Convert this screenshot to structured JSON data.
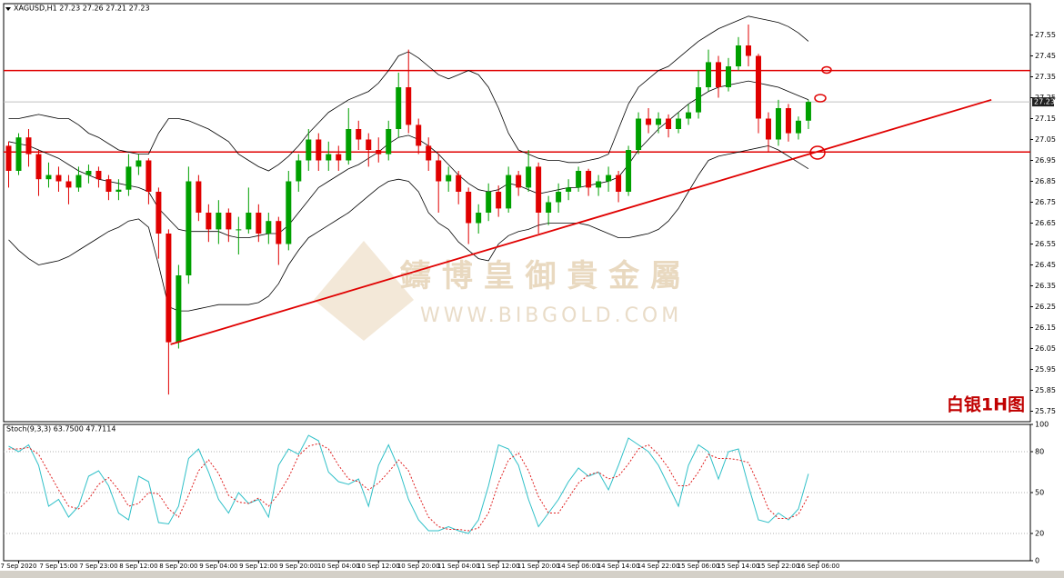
{
  "chart_data": {
    "type": "candlestick",
    "header": "XAGUSD,H1  27.23 27.26 27.21 27.23",
    "annotation": "白银1H图",
    "watermark": {
      "title": "鑄 博 皇 御 貴 金 屬",
      "url": "WWW.BIBGOLD.COM"
    },
    "bull_color": "#00a000",
    "bear_color": "#e00000",
    "xlim": [
      -0.5,
      102.2
    ],
    "xticks": [
      {
        "value": 1,
        "label": "7 Sep 2020"
      },
      {
        "value": 5,
        "label": "7 Sep 15:00"
      },
      {
        "value": 9,
        "label": "7 Sep 23:00"
      },
      {
        "value": 13,
        "label": "8 Sep 12:00"
      },
      {
        "value": 17,
        "label": "8 Sep 20:00"
      },
      {
        "value": 21,
        "label": "9 Sep 04:00"
      },
      {
        "value": 25,
        "label": "9 Sep 12:00"
      },
      {
        "value": 29,
        "label": "9 Sep 20:00"
      },
      {
        "value": 33,
        "label": "10 Sep 04:00"
      },
      {
        "value": 37,
        "label": "10 Sep 12:00"
      },
      {
        "value": 41,
        "label": "10 Sep 20:00"
      },
      {
        "value": 45,
        "label": "11 Sep 04:00"
      },
      {
        "value": 49,
        "label": "11 Sep 12:00"
      },
      {
        "value": 53,
        "label": "11 Sep 20:00"
      },
      {
        "value": 57,
        "label": "14 Sep 06:00"
      },
      {
        "value": 61,
        "label": "14 Sep 14:00"
      },
      {
        "value": 65,
        "label": "14 Sep 22:00"
      },
      {
        "value": 69,
        "label": "15 Sep 06:00"
      },
      {
        "value": 73,
        "label": "15 Sep 14:00"
      },
      {
        "value": 77,
        "label": "15 Sep 22:00"
      },
      {
        "value": 81,
        "label": "16 Sep 06:00"
      }
    ],
    "ylim": [
      25.7,
      27.7
    ],
    "yticks": [
      25.75,
      25.85,
      25.95,
      26.05,
      26.15,
      26.25,
      26.35,
      26.45,
      26.55,
      26.65,
      26.75,
      26.85,
      26.95,
      27.05,
      27.15,
      27.25,
      27.35,
      27.45,
      27.55
    ],
    "last_price": 27.23,
    "hlines": [
      27.38,
      26.99
    ],
    "hline_color": "#e00000",
    "trendline": {
      "x": [
        16.2,
        98.3
      ],
      "y": [
        26.07,
        27.24
      ],
      "color": "#e00000"
    },
    "candles": [
      [
        27.02,
        27.04,
        26.82,
        26.9
      ],
      [
        26.9,
        27.08,
        26.88,
        27.06
      ],
      [
        27.06,
        27.1,
        26.92,
        26.98
      ],
      [
        26.98,
        27.0,
        26.78,
        26.86
      ],
      [
        26.86,
        26.94,
        26.82,
        26.88
      ],
      [
        26.88,
        26.92,
        26.8,
        26.85
      ],
      [
        26.85,
        26.88,
        26.74,
        26.82
      ],
      [
        26.82,
        26.92,
        26.8,
        26.88
      ],
      [
        26.88,
        26.93,
        26.84,
        26.9
      ],
      [
        26.9,
        26.92,
        26.82,
        26.86
      ],
      [
        26.86,
        26.88,
        26.76,
        26.8
      ],
      [
        26.8,
        26.86,
        26.76,
        26.81
      ],
      [
        26.81,
        26.98,
        26.78,
        26.92
      ],
      [
        26.92,
        26.98,
        26.88,
        26.95
      ],
      [
        26.95,
        26.96,
        26.74,
        26.8
      ],
      [
        26.8,
        26.82,
        26.48,
        26.6
      ],
      [
        26.6,
        26.62,
        25.83,
        26.08
      ],
      [
        26.08,
        26.45,
        26.05,
        26.4
      ],
      [
        26.4,
        26.92,
        26.36,
        26.85
      ],
      [
        26.85,
        26.88,
        26.66,
        26.7
      ],
      [
        26.7,
        26.74,
        26.56,
        26.62
      ],
      [
        26.62,
        26.76,
        26.55,
        26.7
      ],
      [
        26.7,
        26.72,
        26.56,
        26.62
      ],
      [
        26.62,
        26.68,
        26.5,
        26.62
      ],
      [
        26.62,
        26.82,
        26.6,
        26.7
      ],
      [
        26.7,
        26.74,
        26.56,
        26.6
      ],
      [
        26.6,
        26.7,
        26.55,
        26.66
      ],
      [
        26.66,
        26.68,
        26.45,
        26.55
      ],
      [
        26.55,
        26.9,
        26.52,
        26.85
      ],
      [
        26.85,
        26.98,
        26.8,
        26.95
      ],
      [
        26.95,
        27.1,
        26.9,
        27.05
      ],
      [
        27.05,
        27.08,
        26.9,
        26.95
      ],
      [
        26.95,
        27.04,
        26.9,
        26.98
      ],
      [
        26.98,
        27.02,
        26.9,
        26.95
      ],
      [
        26.95,
        27.2,
        26.93,
        27.1
      ],
      [
        27.1,
        27.14,
        27.0,
        27.05
      ],
      [
        27.05,
        27.08,
        26.92,
        27.0
      ],
      [
        27.0,
        27.06,
        26.94,
        26.98
      ],
      [
        26.98,
        27.14,
        26.95,
        27.1
      ],
      [
        27.1,
        27.37,
        27.06,
        27.3
      ],
      [
        27.3,
        27.48,
        27.08,
        27.12
      ],
      [
        27.12,
        27.15,
        26.98,
        27.02
      ],
      [
        27.02,
        27.06,
        26.9,
        26.95
      ],
      [
        26.95,
        26.98,
        26.7,
        26.85
      ],
      [
        26.85,
        26.92,
        26.8,
        26.88
      ],
      [
        26.88,
        26.9,
        26.74,
        26.8
      ],
      [
        26.8,
        26.82,
        26.55,
        26.65
      ],
      [
        26.65,
        26.74,
        26.6,
        26.7
      ],
      [
        26.7,
        26.84,
        26.66,
        26.8
      ],
      [
        26.8,
        26.83,
        26.68,
        26.72
      ],
      [
        26.72,
        26.92,
        26.7,
        26.88
      ],
      [
        26.88,
        26.9,
        26.78,
        26.82
      ],
      [
        26.82,
        27.0,
        26.8,
        26.92
      ],
      [
        26.92,
        26.94,
        26.6,
        26.7
      ],
      [
        26.7,
        26.78,
        26.64,
        26.75
      ],
      [
        26.75,
        26.84,
        26.7,
        26.8
      ],
      [
        26.8,
        26.86,
        26.76,
        26.82
      ],
      [
        26.82,
        26.92,
        26.8,
        26.9
      ],
      [
        26.9,
        26.91,
        26.78,
        26.82
      ],
      [
        26.82,
        26.88,
        26.78,
        26.85
      ],
      [
        26.85,
        26.92,
        26.8,
        26.88
      ],
      [
        26.88,
        26.9,
        26.75,
        26.8
      ],
      [
        26.8,
        27.02,
        26.78,
        27.0
      ],
      [
        27.0,
        27.18,
        26.98,
        27.15
      ],
      [
        27.15,
        27.2,
        27.08,
        27.12
      ],
      [
        27.12,
        27.18,
        27.08,
        27.15
      ],
      [
        27.15,
        27.17,
        27.06,
        27.1
      ],
      [
        27.1,
        27.18,
        27.08,
        27.15
      ],
      [
        27.15,
        27.22,
        27.12,
        27.18
      ],
      [
        27.18,
        27.38,
        27.15,
        27.3
      ],
      [
        27.3,
        27.48,
        27.28,
        27.42
      ],
      [
        27.42,
        27.45,
        27.25,
        27.3
      ],
      [
        27.3,
        27.44,
        27.28,
        27.4
      ],
      [
        27.4,
        27.54,
        27.38,
        27.5
      ],
      [
        27.5,
        27.6,
        27.4,
        27.45
      ],
      [
        27.45,
        27.46,
        27.08,
        27.15
      ],
      [
        27.15,
        27.18,
        26.99,
        27.05
      ],
      [
        27.05,
        27.24,
        27.02,
        27.2
      ],
      [
        27.2,
        27.22,
        27.04,
        27.08
      ],
      [
        27.08,
        27.16,
        27.05,
        27.14
      ],
      [
        27.14,
        27.24,
        27.1,
        27.23
      ]
    ],
    "bollinger": {
      "color": "#000000",
      "upper": [
        27.15,
        27.15,
        27.16,
        27.17,
        27.16,
        27.15,
        27.15,
        27.12,
        27.08,
        27.06,
        27.03,
        27.0,
        26.99,
        26.98,
        26.98,
        27.08,
        27.15,
        27.15,
        27.14,
        27.12,
        27.1,
        27.07,
        27.04,
        26.98,
        26.95,
        26.92,
        26.9,
        26.93,
        26.97,
        27.02,
        27.08,
        27.13,
        27.18,
        27.21,
        27.24,
        27.26,
        27.28,
        27.32,
        27.38,
        27.45,
        27.47,
        27.44,
        27.4,
        27.36,
        27.34,
        27.36,
        27.38,
        27.36,
        27.3,
        27.2,
        27.08,
        27.0,
        26.98,
        26.96,
        26.95,
        26.95,
        26.94,
        26.94,
        26.95,
        26.96,
        26.98,
        27.1,
        27.22,
        27.3,
        27.34,
        27.38,
        27.4,
        27.44,
        27.48,
        27.52,
        27.55,
        27.58,
        27.6,
        27.62,
        27.64,
        27.63,
        27.62,
        27.61,
        27.59,
        27.56,
        27.52
      ],
      "middle": [
        27.04,
        27.03,
        27.02,
        27.0,
        26.98,
        26.96,
        26.93,
        26.9,
        26.88,
        26.86,
        26.85,
        26.84,
        26.83,
        26.82,
        26.8,
        26.72,
        26.67,
        26.62,
        26.61,
        26.61,
        26.61,
        26.61,
        26.59,
        26.58,
        26.58,
        26.59,
        26.6,
        26.6,
        26.64,
        26.7,
        26.76,
        26.82,
        26.85,
        26.88,
        26.91,
        26.93,
        26.96,
        26.99,
        27.03,
        27.06,
        27.07,
        27.05,
        27.02,
        26.98,
        26.93,
        26.88,
        26.84,
        26.81,
        26.8,
        26.81,
        26.84,
        26.83,
        26.81,
        26.79,
        26.8,
        26.81,
        26.82,
        26.82,
        26.83,
        26.84,
        26.85,
        26.87,
        26.93,
        27.0,
        27.05,
        27.1,
        27.14,
        27.18,
        27.22,
        27.25,
        27.28,
        27.3,
        27.31,
        27.32,
        27.33,
        27.32,
        27.31,
        27.3,
        27.28,
        27.26,
        27.24
      ],
      "lower": [
        26.57,
        26.52,
        26.48,
        26.45,
        26.46,
        26.47,
        26.49,
        26.52,
        26.55,
        26.58,
        26.61,
        26.63,
        26.66,
        26.67,
        26.63,
        26.45,
        26.25,
        26.23,
        26.23,
        26.24,
        26.25,
        26.26,
        26.26,
        26.26,
        26.26,
        26.27,
        26.3,
        26.36,
        26.45,
        26.52,
        26.58,
        26.61,
        26.64,
        26.67,
        26.7,
        26.74,
        26.78,
        26.82,
        26.85,
        26.86,
        26.85,
        26.8,
        26.7,
        26.65,
        26.62,
        26.56,
        26.52,
        26.48,
        26.47,
        26.55,
        26.59,
        26.61,
        26.62,
        26.64,
        26.65,
        26.65,
        26.65,
        26.65,
        26.64,
        26.62,
        26.6,
        26.58,
        26.58,
        26.59,
        26.6,
        26.62,
        26.66,
        26.72,
        26.8,
        26.88,
        26.95,
        26.97,
        26.98,
        26.99,
        27.0,
        27.01,
        27.02,
        27.0,
        26.97,
        26.94,
        26.91
      ]
    },
    "stochastic": {
      "header": "Stoch(9,3,3) 63.7500 47.7114",
      "k_color": "#30c0c8",
      "d_color": "#e02020",
      "ylim": [
        0,
        100
      ],
      "yticks": [
        0,
        20,
        50,
        80,
        100
      ],
      "k": [
        84,
        80,
        85,
        70,
        40,
        45,
        32,
        40,
        62,
        66,
        55,
        35,
        30,
        62,
        58,
        28,
        27,
        40,
        75,
        82,
        65,
        45,
        35,
        50,
        42,
        45,
        32,
        70,
        82,
        78,
        92,
        88,
        65,
        58,
        56,
        60,
        40,
        70,
        85,
        68,
        45,
        30,
        22,
        22,
        25,
        22,
        20,
        30,
        55,
        85,
        82,
        70,
        45,
        25,
        35,
        45,
        58,
        68,
        62,
        65,
        52,
        70,
        90,
        85,
        80,
        70,
        55,
        40,
        70,
        85,
        80,
        60,
        80,
        82,
        55,
        30,
        28,
        35,
        30,
        38,
        63.75
      ],
      "d": [
        82,
        82,
        83,
        78,
        65,
        52,
        40,
        38,
        45,
        56,
        61,
        52,
        40,
        42,
        50,
        49,
        38,
        32,
        48,
        66,
        74,
        64,
        48,
        43,
        42,
        46,
        40,
        49,
        61,
        77,
        84,
        86,
        82,
        70,
        60,
        58,
        52,
        57,
        65,
        74,
        66,
        48,
        32,
        25,
        23,
        23,
        22,
        24,
        35,
        57,
        74,
        79,
        66,
        47,
        35,
        35,
        46,
        57,
        63,
        65,
        60,
        62,
        71,
        82,
        85,
        78,
        68,
        55,
        55,
        65,
        78,
        75,
        75,
        74,
        72,
        56,
        38,
        31,
        31,
        34,
        47.7114
      ]
    }
  }
}
